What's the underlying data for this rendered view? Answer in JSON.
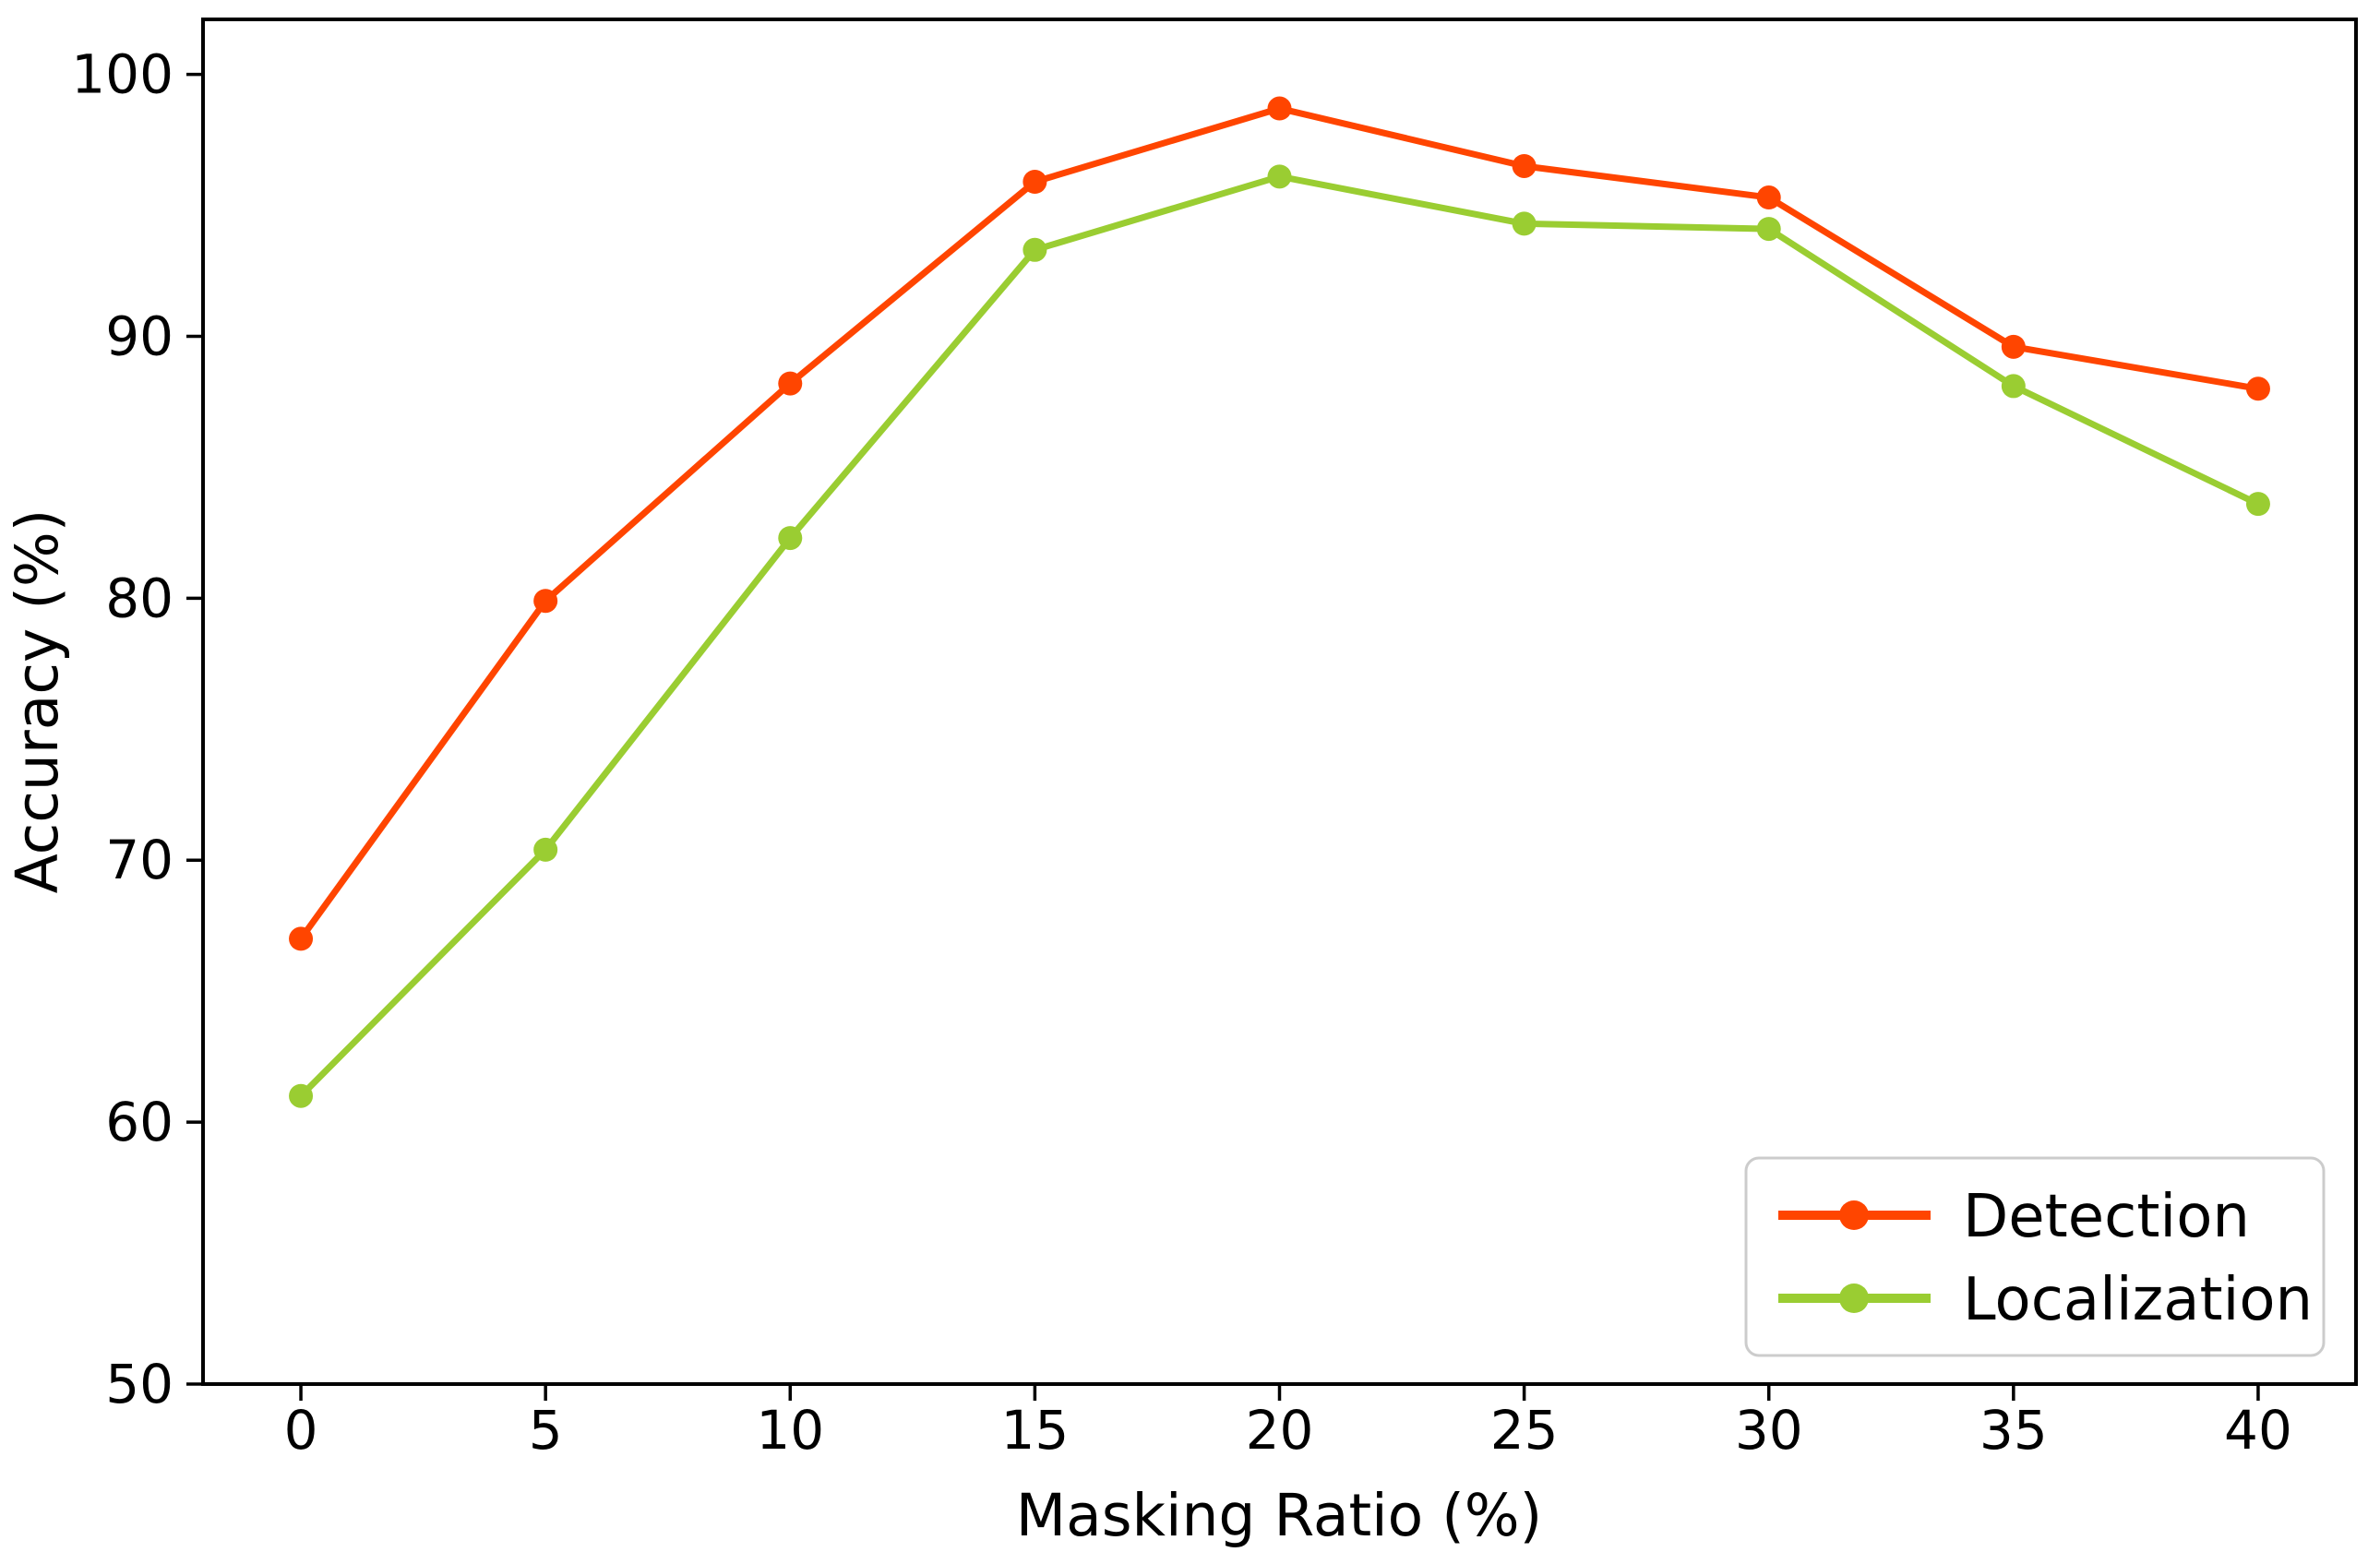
{
  "figure": {
    "background_color": "#ffffff",
    "axis_color": "#000000"
  },
  "chart_data": {
    "type": "line",
    "title": "",
    "xlabel": "Masking Ratio (%)",
    "ylabel": "Accuracy (%)",
    "x": [
      0,
      5,
      10,
      15,
      20,
      25,
      30,
      35,
      40
    ],
    "x_tick_labels": [
      "0",
      "5",
      "10",
      "15",
      "20",
      "25",
      "30",
      "35",
      "40"
    ],
    "y_ticks": [
      50,
      60,
      70,
      80,
      90,
      100
    ],
    "y_tick_labels": [
      "50",
      "60",
      "70",
      "80",
      "90",
      "100"
    ],
    "xlim": [
      -2,
      42
    ],
    "ylim": [
      50,
      102.1
    ],
    "grid": false,
    "legend_position": "lower right",
    "series": [
      {
        "name": "Detection",
        "color": "#FF4500",
        "marker": "circle",
        "values": [
          67.0,
          79.9,
          88.2,
          95.9,
          98.7,
          96.5,
          95.3,
          89.6,
          88.0
        ]
      },
      {
        "name": "Localization",
        "color": "#9ACD32",
        "marker": "circle",
        "values": [
          61.0,
          70.4,
          82.3,
          93.3,
          96.1,
          94.3,
          94.1,
          88.1,
          83.6
        ]
      }
    ]
  },
  "legend": {
    "items": [
      {
        "label": "Detection",
        "color": "#FF4500"
      },
      {
        "label": "Localization",
        "color": "#9ACD32"
      }
    ],
    "border_color": "#cccccc",
    "background_color": "#ffffff"
  }
}
